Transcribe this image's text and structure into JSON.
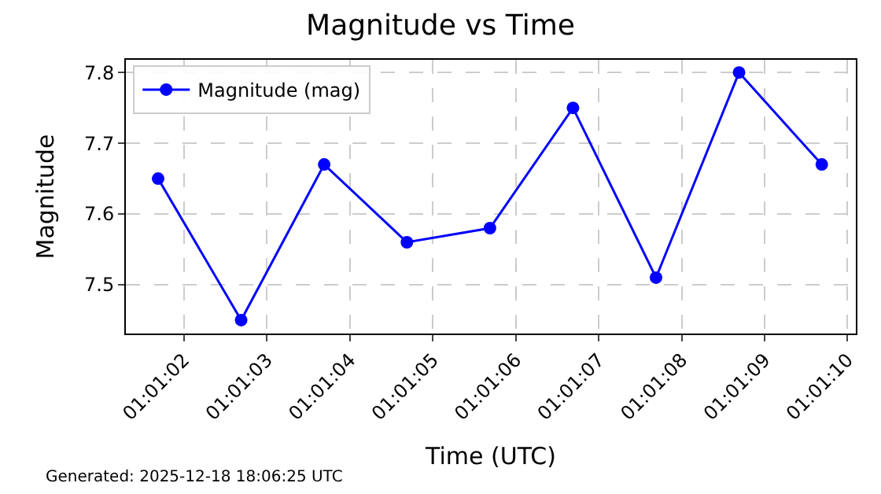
{
  "chart_data": {
    "type": "line",
    "title": "Magnitude vs Time",
    "xlabel": "Time (UTC)",
    "ylabel": "Magnitude",
    "x": [
      1.017136,
      1.017414,
      1.017692,
      1.017969,
      1.018247,
      1.018525,
      1.018803,
      1.019081,
      1.019358
    ],
    "series": [
      {
        "name": "Magnitude (mag)",
        "color": "#0000ff",
        "values": [
          7.65,
          7.45,
          7.67,
          7.56,
          7.58,
          7.75,
          7.51,
          7.8,
          7.67
        ]
      }
    ],
    "xlim": [
      1.017028,
      1.019472
    ],
    "xticks": [
      {
        "value": 1.017222,
        "label": "01:01:02"
      },
      {
        "value": 1.0175,
        "label": "01:01:03"
      },
      {
        "value": 1.017778,
        "label": "01:01:04"
      },
      {
        "value": 1.018056,
        "label": "01:01:05"
      },
      {
        "value": 1.018333,
        "label": "01:01:06"
      },
      {
        "value": 1.018611,
        "label": "01:01:07"
      },
      {
        "value": 1.018889,
        "label": "01:01:08"
      },
      {
        "value": 1.019167,
        "label": "01:01:09"
      },
      {
        "value": 1.019444,
        "label": "01:01:10"
      }
    ],
    "ylim": [
      7.431,
      7.818
    ],
    "yticks": [
      7.5,
      7.6,
      7.7,
      7.8
    ],
    "grid": true,
    "legend": "top left",
    "marker": "circle",
    "line_style": "solid",
    "annotations": [
      "Generated: 2025-12-18 18:06:25 UTC"
    ]
  }
}
